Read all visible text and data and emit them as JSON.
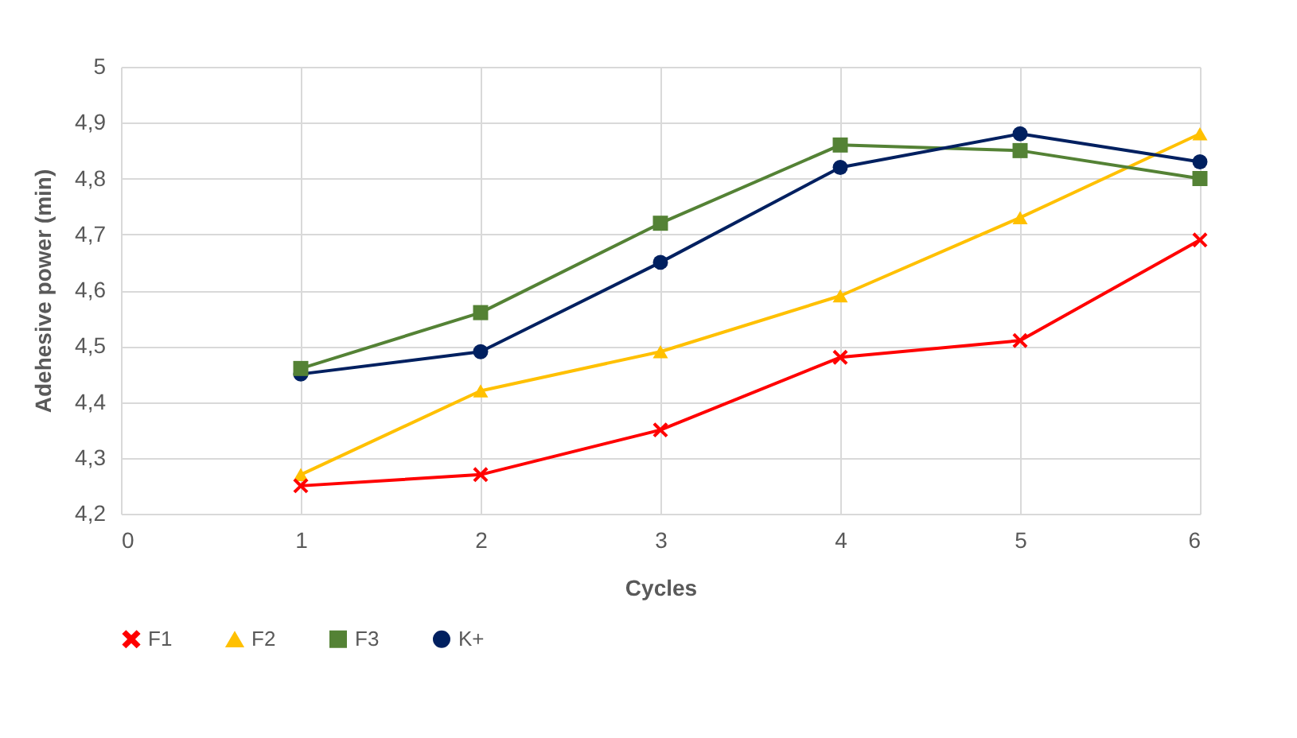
{
  "chart_data": {
    "type": "line",
    "xlabel": "Cycles",
    "ylabel": "Adehesive power (min)",
    "x": [
      1,
      2,
      3,
      4,
      5,
      6
    ],
    "series": [
      {
        "name": "F1",
        "color": "#ff0000",
        "marker": "cross",
        "values": [
          4.25,
          4.27,
          4.35,
          4.48,
          4.51,
          4.69
        ]
      },
      {
        "name": "F2",
        "color": "#ffc000",
        "marker": "triangle",
        "values": [
          4.27,
          4.42,
          4.49,
          4.59,
          4.73,
          4.88
        ]
      },
      {
        "name": "F3",
        "color": "#548235",
        "marker": "square",
        "values": [
          4.46,
          4.56,
          4.72,
          4.86,
          4.85,
          4.8
        ]
      },
      {
        "name": "K+",
        "color": "#002060",
        "marker": "circle",
        "values": [
          4.45,
          4.49,
          4.65,
          4.82,
          4.88,
          4.83
        ]
      }
    ],
    "xlim": [
      0,
      6
    ],
    "xticks": [
      0,
      1,
      2,
      3,
      4,
      5,
      6
    ],
    "ylim": [
      4.2,
      5
    ],
    "yticks": [
      {
        "value": 4.2,
        "label": "4,2"
      },
      {
        "value": 4.3,
        "label": "4,3"
      },
      {
        "value": 4.4,
        "label": "4,4"
      },
      {
        "value": 4.5,
        "label": "4,5"
      },
      {
        "value": 4.6,
        "label": "4,6"
      },
      {
        "value": 4.7,
        "label": "4,7"
      },
      {
        "value": 4.8,
        "label": "4,8"
      },
      {
        "value": 4.9,
        "label": "4,9"
      },
      {
        "value": 5,
        "label": "5"
      }
    ],
    "grid": true,
    "legend": "bottom",
    "line_style": "solid"
  }
}
